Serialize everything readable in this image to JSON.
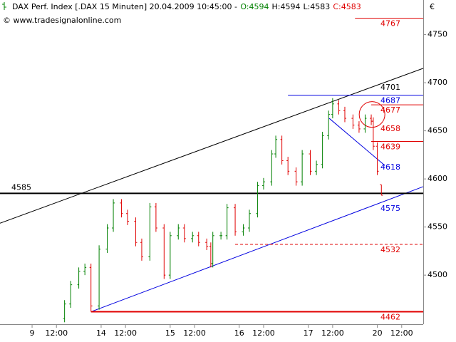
{
  "chart_data": {
    "type": "ohlc",
    "title": "DAX Perf. Index [.DAX  15 Minuten] 20.04.2009 10:45:00 -",
    "quote": [
      {
        "text": "O:4594",
        "color": "#008000"
      },
      {
        "text": "H:4594",
        "color": "#000000"
      },
      {
        "text": "L:4583",
        "color": "#000000"
      },
      {
        "text": "C:4583",
        "color": "#e00000"
      }
    ],
    "watermark": "© www.tradesignalonline.com",
    "currency": "€",
    "up_color": "#008000",
    "down_color": "#e00000",
    "x": [
      16,
      19,
      23,
      26,
      29,
      33,
      37,
      40,
      44,
      47,
      51,
      54,
      58,
      61,
      65,
      68,
      72,
      75,
      79,
      82,
      86,
      88,
      89,
      93,
      96,
      100,
      104,
      107,
      111,
      114,
      118,
      120,
      123,
      126,
      130,
      133,
      137,
      140,
      143,
      146,
      148,
      151,
      154,
      158,
      161,
      164,
      167,
      168,
      170,
      172
    ],
    "open": [
      4455,
      4470,
      4490,
      4504,
      4508,
      4468,
      4527,
      4549,
      4575,
      4564,
      4556,
      4534,
      4519,
      4571,
      4549,
      4500,
      4541,
      4549,
      4538,
      4541,
      4534,
      4530,
      4512,
      4541,
      4541,
      4570,
      4545,
      4549,
      4564,
      4593,
      4597,
      4626,
      4641,
      4619,
      4608,
      4597,
      4626,
      4608,
      4615,
      4645,
      4667,
      4678,
      4671,
      4663,
      4656,
      4652,
      4663,
      4660,
      4634,
      4594
    ],
    "high": [
      4474,
      4494,
      4508,
      4512,
      4512,
      4531,
      4553,
      4579,
      4579,
      4568,
      4560,
      4538,
      4575,
      4575,
      4553,
      4545,
      4553,
      4553,
      4545,
      4545,
      4538,
      4534,
      4545,
      4545,
      4574,
      4574,
      4553,
      4568,
      4597,
      4601,
      4630,
      4645,
      4645,
      4623,
      4612,
      4630,
      4630,
      4619,
      4649,
      4671,
      4684,
      4682,
      4675,
      4667,
      4660,
      4667,
      4667,
      4664,
      4638,
      4594
    ],
    "low": [
      4451,
      4466,
      4486,
      4500,
      4462,
      4464,
      4523,
      4545,
      4560,
      4552,
      4530,
      4515,
      4515,
      4545,
      4496,
      4496,
      4537,
      4534,
      4534,
      4530,
      4526,
      4508,
      4508,
      4537,
      4537,
      4541,
      4541,
      4545,
      4560,
      4589,
      4593,
      4622,
      4615,
      4604,
      4593,
      4593,
      4604,
      4604,
      4611,
      4641,
      4663,
      4667,
      4659,
      4652,
      4648,
      4648,
      4656,
      4630,
      4604,
      4583
    ],
    "close": [
      4470,
      4490,
      4504,
      4508,
      4468,
      4527,
      4549,
      4575,
      4564,
      4556,
      4534,
      4519,
      4571,
      4549,
      4500,
      4541,
      4549,
      4538,
      4541,
      4534,
      4530,
      4512,
      4541,
      4541,
      4570,
      4545,
      4549,
      4564,
      4593,
      4597,
      4626,
      4641,
      4619,
      4608,
      4597,
      4626,
      4608,
      4615,
      4645,
      4667,
      4678,
      4671,
      4663,
      4656,
      4652,
      4663,
      4660,
      4634,
      4608,
      4583
    ],
    "xlim": [
      -15.8,
      192.6
    ],
    "ylim": [
      4449,
      4786
    ],
    "yticks": [
      4500,
      4550,
      4600,
      4650,
      4700,
      4750
    ],
    "xticks": [
      {
        "value": 0,
        "label": "9"
      },
      {
        "value": 12,
        "label": "12:00"
      },
      {
        "value": 34,
        "label": "14"
      },
      {
        "value": 46,
        "label": "12:00"
      },
      {
        "value": 68,
        "label": "15"
      },
      {
        "value": 80,
        "label": "12:00"
      },
      {
        "value": 102,
        "label": "16"
      },
      {
        "value": 114,
        "label": "12:00"
      },
      {
        "value": 136,
        "label": "17"
      },
      {
        "value": 148,
        "label": "12:00"
      },
      {
        "value": 170,
        "label": "20"
      },
      {
        "value": 182,
        "label": "12:00"
      }
    ],
    "levels": [
      {
        "value": 4767,
        "color": "#e00000",
        "from": 159,
        "style": "solid"
      },
      {
        "value": 4701,
        "color": "#000000"
      },
      {
        "value": 4687,
        "color": "#0000e0",
        "from": 126,
        "style": "solid"
      },
      {
        "value": 4677,
        "color": "#e00000",
        "from": 167,
        "style": "solid"
      },
      {
        "value": 4658,
        "color": "#e00000"
      },
      {
        "value": 4639,
        "color": "#e00000",
        "from": 167,
        "style": "solid"
      },
      {
        "value": 4618,
        "color": "#0000e0"
      },
      {
        "value": 4585,
        "color": "#000000",
        "from": -15.8,
        "style": "thick"
      },
      {
        "value": 4575,
        "color": "#0000e0"
      },
      {
        "value": 4532,
        "color": "#e00000",
        "from": 100,
        "style": "dashed"
      },
      {
        "value": 4462,
        "color": "#e00000",
        "from": 29,
        "style": "thick"
      }
    ],
    "trendlines": [
      {
        "points": [
          [
            -15.8,
            4554
          ],
          [
            192.6,
            4715
          ]
        ],
        "color": "#000000"
      },
      {
        "points": [
          [
            29.1,
            4462
          ],
          [
            192.6,
            4592
          ]
        ],
        "color": "#0000e0"
      },
      {
        "points": [
          [
            146.3,
            4663
          ],
          [
            173.7,
            4614
          ]
        ],
        "color": "#0000e0"
      }
    ],
    "marker": {
      "x": 167.4,
      "y": 4667,
      "color": "#e00000"
    }
  }
}
